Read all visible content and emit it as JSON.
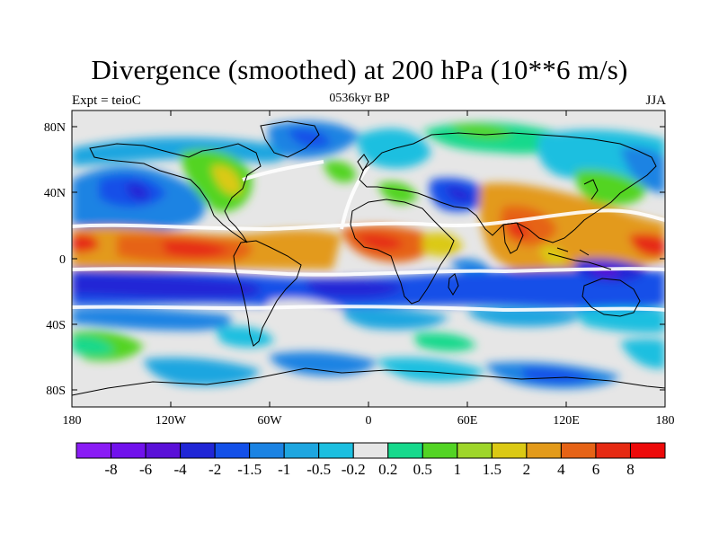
{
  "title": "Divergence (smoothed) at 200 hPa (10**6 m/s)",
  "subtitle_left": "Expt = teioC",
  "subtitle_center": "0536kyr BP",
  "subtitle_right": "JJA",
  "lat_labels": [
    "80N",
    "40N",
    "0",
    "40S",
    "80S"
  ],
  "lon_labels": [
    "180",
    "120W",
    "60W",
    "0",
    "60E",
    "120E",
    "180"
  ],
  "colorbar": {
    "labels": [
      "-8",
      "-6",
      "-4",
      "-2",
      "-1.5",
      "-1",
      "-0.5",
      "-0.2",
      "0.2",
      "0.5",
      "1",
      "1.5",
      "2",
      "4",
      "6",
      "8"
    ],
    "colors": [
      "#8a1cf5",
      "#7111ec",
      "#5a10d8",
      "#2026d6",
      "#1350e8",
      "#1b83e3",
      "#1ea6e0",
      "#1cbfe0",
      "#e6e6e6",
      "#16d98c",
      "#53d424",
      "#9ed62a",
      "#dbc914",
      "#e39a1a",
      "#e66316",
      "#e62a12",
      "#ed0a0a"
    ]
  },
  "colors": {
    "background": "#e6e6e6",
    "coast": "#000000"
  }
}
